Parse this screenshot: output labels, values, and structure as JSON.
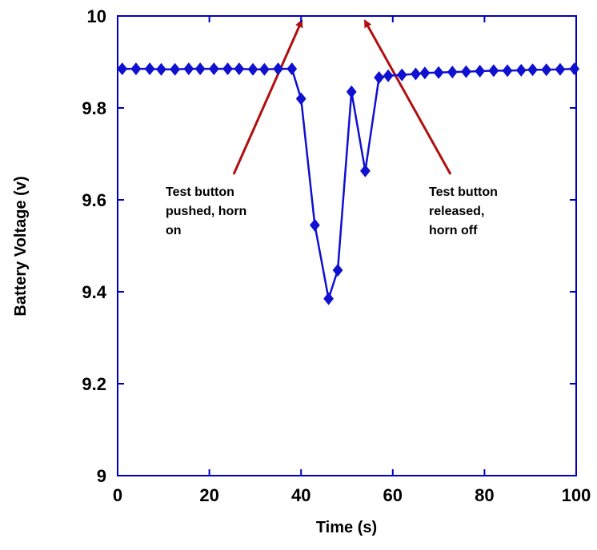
{
  "chart_data": {
    "type": "line",
    "xlabel": "Time (s)",
    "ylabel": "Battery Voltage (v)",
    "x": [
      1,
      4,
      7,
      9.5,
      12.5,
      15.5,
      18,
      21,
      24,
      26.5,
      29.5,
      32,
      35,
      38,
      40,
      43,
      46,
      48,
      51,
      54,
      57,
      59,
      62,
      65,
      67,
      70,
      73,
      76,
      79,
      82,
      85,
      88,
      90.5,
      93.5,
      96.5,
      99.6
    ],
    "series": [
      {
        "name": "Battery voltage",
        "color": "#1010d0",
        "values": [
          9.885,
          9.885,
          9.885,
          9.884,
          9.884,
          9.885,
          9.885,
          9.885,
          9.885,
          9.885,
          9.884,
          9.884,
          9.885,
          9.885,
          9.82,
          9.545,
          9.385,
          9.447,
          9.835,
          9.663,
          9.866,
          9.87,
          9.872,
          9.874,
          9.876,
          9.877,
          9.878,
          9.879,
          9.88,
          9.881,
          9.881,
          9.882,
          9.883,
          9.883,
          9.884,
          9.885
        ]
      }
    ],
    "xlim": [
      0,
      100
    ],
    "xticks": [
      0,
      20,
      40,
      60,
      80,
      100
    ],
    "ylim": [
      9,
      10
    ],
    "yticks": [
      9,
      9.2,
      9.4,
      9.6,
      9.8,
      10
    ],
    "annotations": [
      {
        "lines": [
          "Test button",
          "pushed, horn",
          "on"
        ]
      },
      {
        "lines": [
          "Test button",
          "released,",
          "horn off"
        ]
      }
    ]
  }
}
